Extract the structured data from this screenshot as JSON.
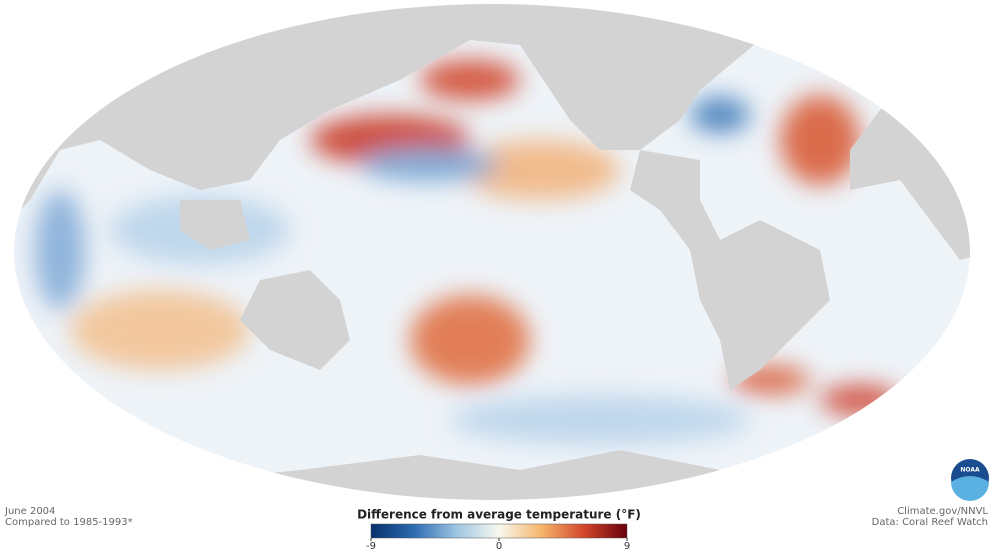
{
  "date": "June 2004",
  "baseline": "Compared to 1985-1993*",
  "legend": {
    "title": "Difference from average temperature (°F)",
    "range": [
      -9,
      9
    ],
    "ticks": [
      -9,
      0,
      9
    ],
    "colors": [
      "#08306b",
      "#2c6bb0",
      "#9ec5e2",
      "#f8f8ee",
      "#f5b56b",
      "#d2452a",
      "#67000d"
    ]
  },
  "credits": [
    "Climate.gov/NNVL",
    "Data: Coral Reef Watch"
  ]
}
